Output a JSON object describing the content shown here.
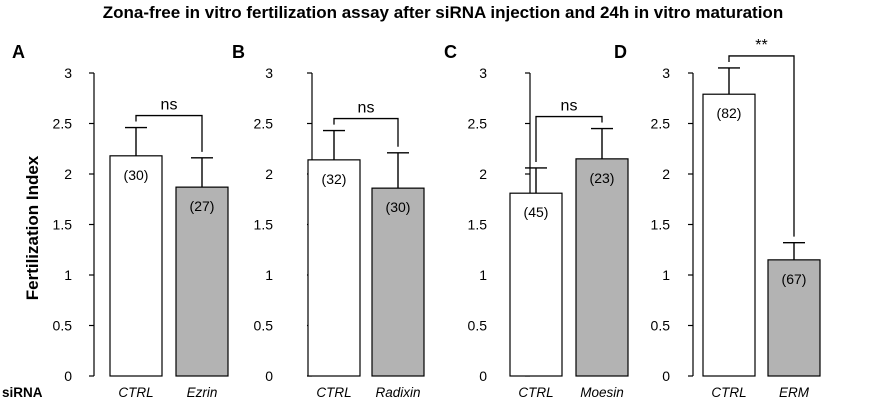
{
  "title": "Zona-free in vitro fertilization assay after siRNA injection and 24h in vitro maturation",
  "ylabel": "Fertilization Index",
  "row_label": "siRNA",
  "colors": {
    "ctrl_fill": "#ffffff",
    "treat_fill": "#b3b3b3",
    "stroke": "#000000"
  },
  "chart_data": [
    {
      "type": "bar",
      "panel": "A",
      "ylim": [
        0,
        3
      ],
      "yticks": [
        "0",
        "0.5",
        "1",
        "1.5",
        "2",
        "2.5",
        "3"
      ],
      "categories": [
        "CTRL",
        "Ezrin"
      ],
      "values": [
        2.18,
        1.87
      ],
      "errors": [
        0.28,
        0.29
      ],
      "counts": [
        "(30)",
        "(27)"
      ],
      "significance": "ns"
    },
    {
      "type": "bar",
      "panel": "B",
      "ylim": [
        0,
        3
      ],
      "yticks": [
        "0",
        "0.5",
        "1",
        "1.5",
        "2",
        "2.5",
        "3"
      ],
      "categories": [
        "CTRL",
        "Radixin"
      ],
      "values": [
        2.14,
        1.86
      ],
      "errors": [
        0.29,
        0.35
      ],
      "counts": [
        "(32)",
        "(30)"
      ],
      "significance": "ns"
    },
    {
      "type": "bar",
      "panel": "C",
      "ylim": [
        0,
        3
      ],
      "yticks": [
        "0",
        "0.5",
        "1",
        "1.5",
        "2",
        "2.5",
        "3"
      ],
      "categories": [
        "CTRL",
        "Moesin"
      ],
      "values": [
        1.81,
        2.15
      ],
      "errors": [
        0.25,
        0.3
      ],
      "counts": [
        "(45)",
        "(23)"
      ],
      "significance": "ns"
    },
    {
      "type": "bar",
      "panel": "D",
      "ylim": [
        0,
        3
      ],
      "yticks": [
        "0",
        "0.5",
        "1",
        "1.5",
        "2",
        "2.5",
        "3"
      ],
      "categories": [
        "CTRL",
        "ERM"
      ],
      "values": [
        2.79,
        1.15
      ],
      "errors": [
        0.26,
        0.17
      ],
      "counts": [
        "(82)",
        "(67)"
      ],
      "significance": "**"
    }
  ]
}
